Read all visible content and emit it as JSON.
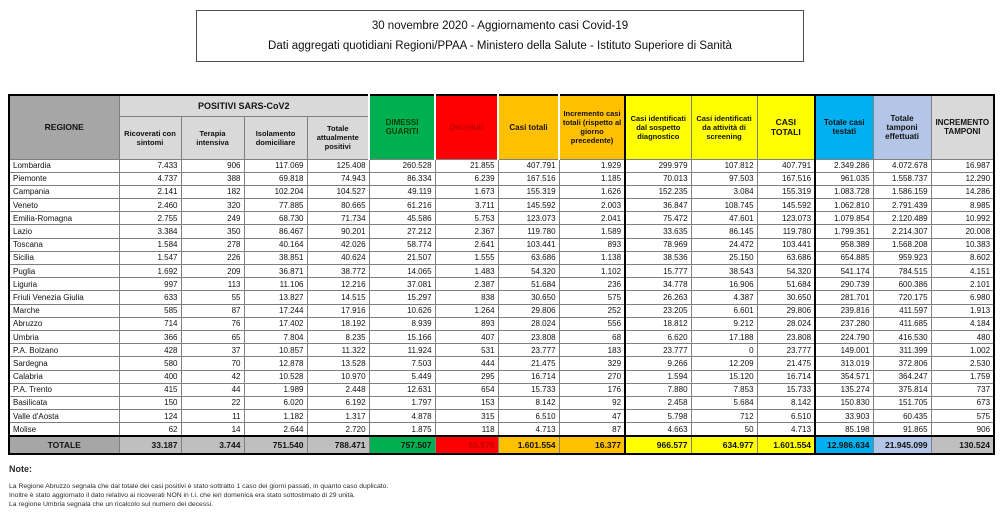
{
  "header": {
    "line1": "30 novembre 2020 - Aggiornamento casi Covid-19",
    "line2": "Dati aggregati quotidiani Regioni/PPAA - Ministero della Salute - Istituto Superiore di Sanità"
  },
  "colors": {
    "green": "#00b050",
    "red": "#ff0000",
    "red_text": "#c00000",
    "orange": "#ffc000",
    "yellow": "#ffff00",
    "cyan": "#00b0f0",
    "lavender": "#b4c6e7",
    "gray_dark": "#a6a6a6",
    "gray_light": "#d9d9d9",
    "total_gray": "#bfbfbf"
  },
  "table": {
    "regione_header": "REGIONE",
    "positivi_group_header": "POSITIVI SARS-CoV2",
    "sub_headers": [
      "Ricoverati con sintomi",
      "Terapia intensiva",
      "Isolamento domiciliare",
      "Totale attualmente positivi"
    ],
    "col_headers": {
      "dimessi": "DIMESSI GUARITI",
      "deceduti": "Deceduti",
      "casi_totali": "Casi totali",
      "incremento": "Incremento casi totali (rispetto al giorno precedente)",
      "sospetto": "Casi identificati dal sospetto diagnostico",
      "screening": "Casi identificati da attività di screening",
      "casi_totali_2": "CASI TOTALI",
      "testati": "Totale casi testati",
      "tamponi": "Totale tamponi effettuati",
      "incremento_tamponi": "INCREMENTO TAMPONI"
    },
    "rows": [
      {
        "region": "Lombardia",
        "values": [
          "7.433",
          "906",
          "117.069",
          "125.408",
          "260.528",
          "21.855",
          "407.791",
          "1.929",
          "299.979",
          "107.812",
          "407.791",
          "2.349.286",
          "4.072.678",
          "16.987"
        ]
      },
      {
        "region": "Piemonte",
        "values": [
          "4.737",
          "388",
          "69.818",
          "74.943",
          "86.334",
          "6.239",
          "167.516",
          "1.185",
          "70.013",
          "97.503",
          "167.516",
          "961.035",
          "1.558.737",
          "12.290"
        ]
      },
      {
        "region": "Campania",
        "values": [
          "2.141",
          "182",
          "102.204",
          "104.527",
          "49.119",
          "1.673",
          "155.319",
          "1.626",
          "152.235",
          "3.084",
          "155.319",
          "1.083.728",
          "1.586.159",
          "14.286"
        ]
      },
      {
        "region": "Veneto",
        "values": [
          "2.460",
          "320",
          "77.885",
          "80.665",
          "61.216",
          "3.711",
          "145.592",
          "2.003",
          "36.847",
          "108.745",
          "145.592",
          "1.062.810",
          "2.791.439",
          "8.985"
        ]
      },
      {
        "region": "Emilia-Romagna",
        "values": [
          "2.755",
          "249",
          "68.730",
          "71.734",
          "45.586",
          "5.753",
          "123.073",
          "2.041",
          "75.472",
          "47.601",
          "123.073",
          "1.079.854",
          "2.120.489",
          "10.992"
        ]
      },
      {
        "region": "Lazio",
        "values": [
          "3.384",
          "350",
          "86.467",
          "90.201",
          "27.212",
          "2.367",
          "119.780",
          "1.589",
          "33.635",
          "86.145",
          "119.780",
          "1.799.351",
          "2.214.307",
          "20.008"
        ]
      },
      {
        "region": "Toscana",
        "values": [
          "1.584",
          "278",
          "40.164",
          "42.026",
          "58.774",
          "2.641",
          "103.441",
          "893",
          "78.969",
          "24.472",
          "103.441",
          "958.389",
          "1.568.208",
          "10.383"
        ]
      },
      {
        "region": "Sicilia",
        "values": [
          "1.547",
          "226",
          "38.851",
          "40.624",
          "21.507",
          "1.555",
          "63.686",
          "1.138",
          "38.536",
          "25.150",
          "63.686",
          "654.885",
          "959.923",
          "8.602"
        ]
      },
      {
        "region": "Puglia",
        "values": [
          "1.692",
          "209",
          "36.871",
          "38.772",
          "14.065",
          "1.483",
          "54.320",
          "1.102",
          "15.777",
          "38.543",
          "54.320",
          "541.174",
          "784.515",
          "4.151"
        ]
      },
      {
        "region": "Liguria",
        "values": [
          "997",
          "113",
          "11.106",
          "12.216",
          "37.081",
          "2.387",
          "51.684",
          "236",
          "34.778",
          "16.906",
          "51.684",
          "290.739",
          "600.386",
          "2.101"
        ]
      },
      {
        "region": "Friuli Venezia Giulia",
        "values": [
          "633",
          "55",
          "13.827",
          "14.515",
          "15.297",
          "838",
          "30.650",
          "575",
          "26.263",
          "4.387",
          "30.650",
          "281.701",
          "720.175",
          "6.980"
        ]
      },
      {
        "region": "Marche",
        "values": [
          "585",
          "87",
          "17.244",
          "17.916",
          "10.626",
          "1.264",
          "29.806",
          "252",
          "23.205",
          "6.601",
          "29.806",
          "239.816",
          "411.597",
          "1.913"
        ]
      },
      {
        "region": "Abruzzo",
        "values": [
          "714",
          "76",
          "17.402",
          "18.192",
          "8.939",
          "893",
          "28.024",
          "556",
          "18.812",
          "9.212",
          "28.024",
          "237.280",
          "411.685",
          "4.184"
        ]
      },
      {
        "region": "Umbria",
        "values": [
          "366",
          "65",
          "7.804",
          "8.235",
          "15.166",
          "407",
          "23.808",
          "68",
          "6.620",
          "17.188",
          "23.808",
          "224.790",
          "416.530",
          "480"
        ]
      },
      {
        "region": "P.A. Bolzano",
        "values": [
          "428",
          "37",
          "10.857",
          "11.322",
          "11.924",
          "531",
          "23.777",
          "183",
          "23.777",
          "0",
          "23.777",
          "149.001",
          "311.399",
          "1.002"
        ]
      },
      {
        "region": "Sardegna",
        "values": [
          "580",
          "70",
          "12.878",
          "13.528",
          "7.503",
          "444",
          "21.475",
          "329",
          "9.266",
          "12.209",
          "21.475",
          "313.019",
          "372.806",
          "2.530"
        ]
      },
      {
        "region": "Calabria",
        "values": [
          "400",
          "42",
          "10.528",
          "10.970",
          "5.449",
          "295",
          "16.714",
          "270",
          "1.594",
          "15.120",
          "16.714",
          "354.571",
          "364.247",
          "1.759"
        ]
      },
      {
        "region": "P.A. Trento",
        "values": [
          "415",
          "44",
          "1.989",
          "2.448",
          "12.631",
          "654",
          "15.733",
          "176",
          "7.880",
          "7.853",
          "15.733",
          "135.274",
          "375.814",
          "737"
        ]
      },
      {
        "region": "Basilicata",
        "values": [
          "150",
          "22",
          "6.020",
          "6.192",
          "1.797",
          "153",
          "8.142",
          "92",
          "2.458",
          "5.684",
          "8.142",
          "150.830",
          "151.705",
          "673"
        ]
      },
      {
        "region": "Valle d'Aosta",
        "values": [
          "124",
          "11",
          "1.182",
          "1.317",
          "4.878",
          "315",
          "6.510",
          "47",
          "5.798",
          "712",
          "6.510",
          "33.903",
          "60.435",
          "575"
        ]
      },
      {
        "region": "Molise",
        "values": [
          "62",
          "14",
          "2.644",
          "2.720",
          "1.875",
          "118",
          "4.713",
          "87",
          "4.663",
          "50",
          "4.713",
          "85.198",
          "91.865",
          "906"
        ]
      }
    ],
    "totale": {
      "label": "TOTALE",
      "values": [
        "33.187",
        "3.744",
        "751.540",
        "788.471",
        "757.507",
        "55.576",
        "1.601.554",
        "16.377",
        "966.577",
        "634.977",
        "1.601.554",
        "12.986.634",
        "21.945.099",
        "130.524"
      ]
    }
  },
  "notes": {
    "title": "Note:",
    "lines": [
      "La Regione Abruzzo segnala che dal totale dei casi positivi è stato sottratto 1 caso dei giorni passati, in quanto caso duplicato.",
      "Inoltre è stato aggiornato il dato relativo ai ricoverati NON in t.i. che ieri domenica era stato sottostimato di 29 unità.",
      "La regione Umbria segnala che  un ricalcolo sul numero dei decessi."
    ]
  }
}
